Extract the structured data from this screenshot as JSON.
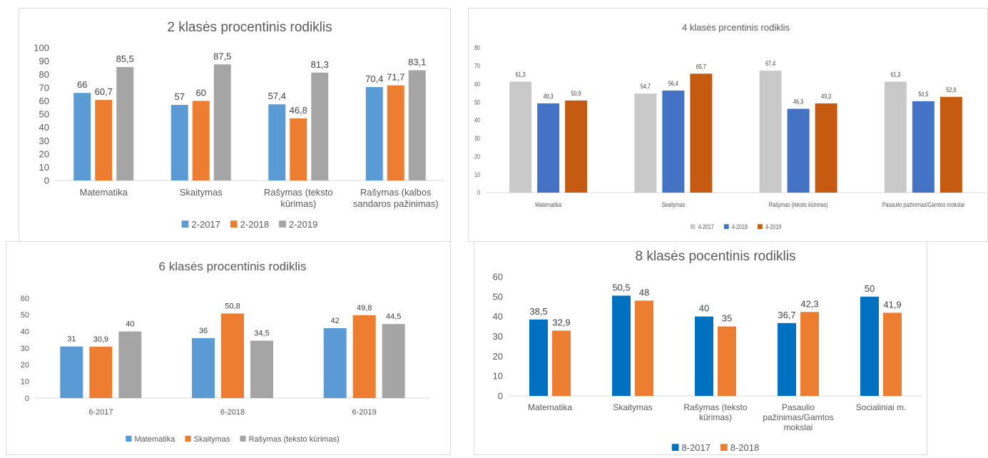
{
  "chart_data": [
    {
      "type": "bar",
      "title": "2 klasės procentinis rodiklis",
      "categories": [
        [
          "Matematika"
        ],
        [
          "Skaitymas"
        ],
        [
          "Rašymas (teksto",
          "kūrimas)"
        ],
        [
          "Rašymas (kalbos",
          "sandaros pažinimas)"
        ]
      ],
      "series": [
        {
          "name": "2-2017",
          "color": "#5b9bd5",
          "values": [
            66,
            57,
            57.4,
            70.4
          ],
          "labels": [
            "66",
            "57",
            "57,4",
            "70,4"
          ]
        },
        {
          "name": "2-2018",
          "color": "#ed7d31",
          "values": [
            60.7,
            60,
            46.8,
            71.7
          ],
          "labels": [
            "60,7",
            "60",
            "46,8",
            "71,7"
          ]
        },
        {
          "name": "2-2019",
          "color": "#a5a5a5",
          "values": [
            85.5,
            87.5,
            81.3,
            83.1
          ],
          "labels": [
            "85,5",
            "87,5",
            "81,3",
            "83,1"
          ]
        }
      ],
      "ylim": [
        0,
        100
      ],
      "yticks": [
        "0",
        "10",
        "20",
        "30",
        "40",
        "50",
        "60",
        "70",
        "80",
        "90",
        "100"
      ],
      "legend": "bottom",
      "grid": false
    },
    {
      "type": "bar",
      "title": "4 klasės prcentinis rodiklis",
      "categories": [
        [
          "Matematika"
        ],
        [
          "Skaitymas"
        ],
        [
          "Rašymas (teksto kūrimas)"
        ],
        [
          "Pasaulio pažinimas/Gamtos mokslai"
        ]
      ],
      "series": [
        {
          "name": "4-2017",
          "color": "#c9c9c9",
          "values": [
            61.3,
            54.7,
            67.4,
            61.3
          ],
          "labels": [
            "61,3",
            "54,7",
            "67,4",
            "61,3"
          ]
        },
        {
          "name": "4-2018",
          "color": "#4472c4",
          "values": [
            49.3,
            56.4,
            46.3,
            50.5
          ],
          "labels": [
            "49,3",
            "56,4",
            "46,3",
            "50,5"
          ]
        },
        {
          "name": "4-2019",
          "color": "#c55a11",
          "values": [
            50.9,
            65.7,
            49.3,
            52.9
          ],
          "labels": [
            "50,9",
            "65,7",
            "49,3",
            "52,9"
          ]
        }
      ],
      "ylim": [
        0,
        80
      ],
      "yticks": [
        "0",
        "10",
        "20",
        "30",
        "40",
        "50",
        "60",
        "70",
        "80"
      ],
      "legend": "bottom",
      "grid": false
    },
    {
      "type": "bar",
      "title": "6 klasės procentinis rodiklis",
      "categories": [
        [
          "6-2017"
        ],
        [
          "6-2018"
        ],
        [
          "6-2019"
        ]
      ],
      "series": [
        {
          "name": "Matematika",
          "color": "#5b9bd5",
          "values": [
            31,
            36,
            42
          ],
          "labels": [
            "31",
            "36",
            "42"
          ]
        },
        {
          "name": "Skaitymas",
          "color": "#ed7d31",
          "values": [
            30.9,
            50.8,
            49.8
          ],
          "labels": [
            "30,9",
            "50,8",
            "49,8"
          ]
        },
        {
          "name": "Rašymas (teksto kūrimas)",
          "color": "#a5a5a5",
          "values": [
            40,
            34.5,
            44.5
          ],
          "labels": [
            "40",
            "34,5",
            "44,5"
          ]
        }
      ],
      "ylim": [
        0,
        60
      ],
      "yticks": [
        "0",
        "10",
        "20",
        "30",
        "40",
        "50",
        "60"
      ],
      "legend": "bottom",
      "grid": false
    },
    {
      "type": "bar",
      "title": "8 klasės pocentinis rodiklis",
      "categories": [
        [
          "Matematika"
        ],
        [
          "Skaitymas"
        ],
        [
          "Rašymas (teksto",
          "kūrimas)"
        ],
        [
          "Pasaulio",
          "pažinimas/Gamtos",
          "mokslai"
        ],
        [
          "Socialiniai m."
        ]
      ],
      "series": [
        {
          "name": "8-2017",
          "color": "#0070c0",
          "values": [
            38.5,
            50.5,
            40,
            36.7,
            50
          ],
          "labels": [
            "38,5",
            "50,5",
            "40",
            "36,7",
            "50"
          ]
        },
        {
          "name": "8-2018",
          "color": "#ed7d31",
          "values": [
            32.9,
            48,
            35,
            42.3,
            41.9
          ],
          "labels": [
            "32,9",
            "48",
            "35",
            "42,3",
            "41,9"
          ]
        }
      ],
      "ylim": [
        0,
        60
      ],
      "yticks": [
        "0",
        "10",
        "20",
        "30",
        "40",
        "50",
        "60"
      ],
      "legend": "bottom",
      "grid": false
    }
  ]
}
